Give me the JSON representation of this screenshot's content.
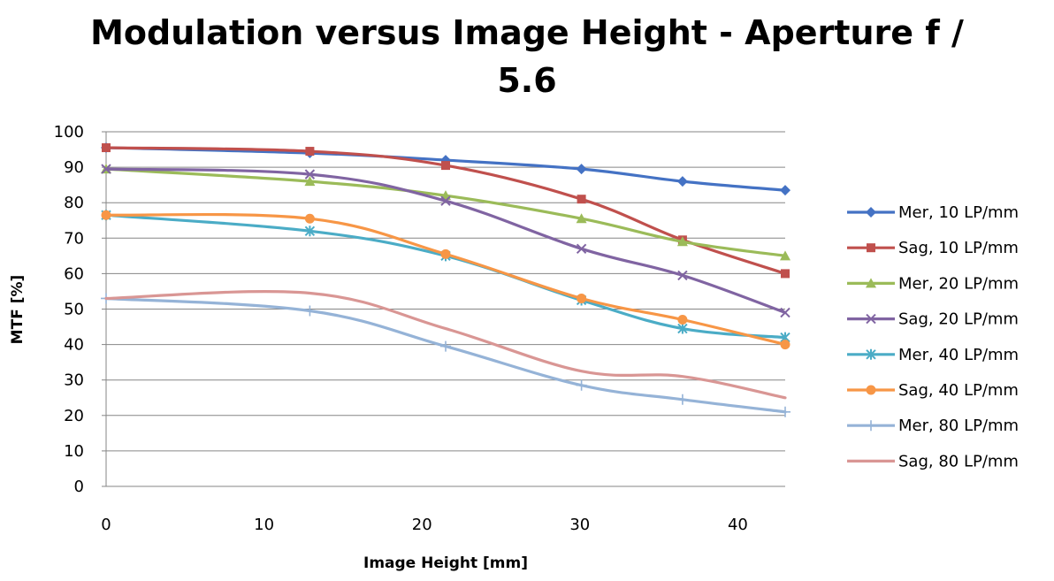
{
  "chart_data": {
    "type": "line",
    "title_lines": [
      "Modulation versus Image Height - Aperture f /",
      "5.6"
    ],
    "xlabel": "Image Height [mm]",
    "ylabel": "MTF [%]",
    "xlim": [
      0,
      43
    ],
    "ylim": [
      0,
      100
    ],
    "xticks": [
      0,
      10,
      20,
      30,
      40
    ],
    "yticks": [
      0,
      10,
      20,
      30,
      40,
      50,
      60,
      70,
      80,
      90,
      100
    ],
    "grid": "horizontal",
    "legend_position": "right",
    "x": [
      0,
      12.9,
      21.5,
      30.1,
      36.5,
      43
    ],
    "series": [
      {
        "name": "Mer, 10 LP/mm",
        "color": "#4472C4",
        "marker": "diamond",
        "values": [
          95.5,
          94,
          92,
          89.5,
          86,
          83.5
        ]
      },
      {
        "name": "Sag, 10 LP/mm",
        "color": "#C0504D",
        "marker": "square",
        "values": [
          95.5,
          94.5,
          90.5,
          81,
          69.5,
          60
        ]
      },
      {
        "name": "Mer, 20 LP/mm",
        "color": "#9BBB59",
        "marker": "triangle",
        "values": [
          89.5,
          86,
          82,
          75.5,
          69,
          65
        ]
      },
      {
        "name": "Sag, 20 LP/mm",
        "color": "#8064A2",
        "marker": "x",
        "values": [
          89.5,
          88,
          80.5,
          67,
          59.5,
          49
        ]
      },
      {
        "name": "Mer, 40 LP/mm",
        "color": "#4BACC6",
        "marker": "star",
        "values": [
          76.5,
          72,
          65,
          52.5,
          44.5,
          42
        ]
      },
      {
        "name": "Sag, 40 LP/mm",
        "color": "#F79646",
        "marker": "circle",
        "values": [
          76.5,
          75.5,
          65.5,
          53,
          47,
          40
        ]
      },
      {
        "name": "Mer, 80 LP/mm",
        "color": "#95B3D7",
        "marker": "plus",
        "values": [
          53,
          49.5,
          39.5,
          28.5,
          24.5,
          21
        ]
      },
      {
        "name": "Sag, 80 LP/mm",
        "color": "#D99694",
        "marker": "none",
        "values": [
          53,
          54.5,
          44.5,
          32.5,
          31,
          25
        ]
      }
    ]
  }
}
